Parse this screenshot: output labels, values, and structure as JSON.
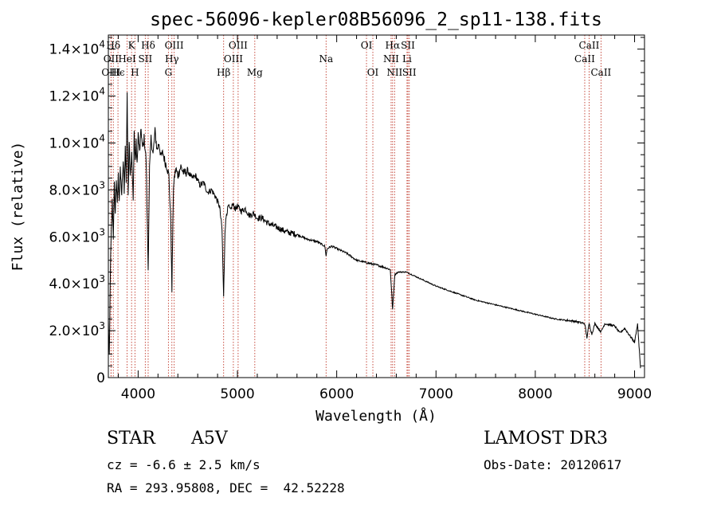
{
  "chart_data": {
    "type": "line",
    "title": "spec-56096-kepler08B56096_2_sp11-138.fits",
    "xlabel": "Wavelength (Å)",
    "ylabel": "Flux (relative)",
    "xlim": [
      3700,
      9100
    ],
    "ylim": [
      0,
      14600
    ],
    "x_ticks": [
      4000,
      5000,
      6000,
      7000,
      8000,
      9000
    ],
    "x_tick_labels": [
      "4000",
      "5000",
      "6000",
      "7000",
      "8000",
      "9000"
    ],
    "y_ticks": [
      0,
      2000,
      4000,
      6000,
      8000,
      10000,
      12000,
      14000
    ],
    "y_tick_labels": [
      {
        "mant": "0",
        "exp": ""
      },
      {
        "mant": "2.0×10",
        "exp": "3"
      },
      {
        "mant": "4.0×10",
        "exp": "3"
      },
      {
        "mant": "6.0×10",
        "exp": "3"
      },
      {
        "mant": "8.0×10",
        "exp": "3"
      },
      {
        "mant": "1.0×10",
        "exp": "4"
      },
      {
        "mant": "1.2×10",
        "exp": "4"
      },
      {
        "mant": "1.4×10",
        "exp": "4"
      }
    ],
    "series": [
      {
        "name": "flux",
        "x": [
          3700,
          3710,
          3720,
          3730,
          3740,
          3750,
          3760,
          3770,
          3780,
          3790,
          3800,
          3810,
          3820,
          3835,
          3850,
          3860,
          3870,
          3880,
          3889,
          3900,
          3910,
          3920,
          3935,
          3950,
          3960,
          3970,
          3980,
          3990,
          4000,
          4015,
          4030,
          4045,
          4060,
          4080,
          4101,
          4115,
          4130,
          4150,
          4170,
          4190,
          4210,
          4230,
          4250,
          4270,
          4290,
          4310,
          4330,
          4340,
          4350,
          4360,
          4380,
          4400,
          4430,
          4460,
          4500,
          4540,
          4580,
          4620,
          4660,
          4700,
          4740,
          4780,
          4820,
          4845,
          4861,
          4875,
          4890,
          4910,
          4930,
          4950,
          4980,
          5000,
          5040,
          5080,
          5120,
          5160,
          5200,
          5250,
          5300,
          5400,
          5500,
          5600,
          5700,
          5800,
          5880,
          5893,
          5905,
          5950,
          6000,
          6100,
          6200,
          6300,
          6400,
          6480,
          6540,
          6563,
          6585,
          6620,
          6700,
          6800,
          6900,
          7000,
          7200,
          7400,
          7600,
          7800,
          8000,
          8200,
          8400,
          8498,
          8520,
          8542,
          8570,
          8600,
          8662,
          8700,
          8800,
          8850,
          8900,
          8950,
          9000,
          9030,
          9060
        ],
        "y": [
          2500,
          800,
          4500,
          6200,
          7500,
          6000,
          8200,
          7000,
          8500,
          7300,
          8600,
          7600,
          8800,
          7800,
          9200,
          8000,
          9800,
          8400,
          12200,
          7800,
          10200,
          8700,
          9500,
          7500,
          10500,
          9200,
          10000,
          9000,
          10400,
          9600,
          10600,
          9700,
          10200,
          9300,
          4600,
          8900,
          10200,
          9500,
          10500,
          9700,
          10000,
          9400,
          9600,
          9200,
          9000,
          8600,
          6500,
          3700,
          6800,
          8400,
          8900,
          8600,
          9000,
          8700,
          8800,
          8500,
          8600,
          8200,
          8300,
          7900,
          8000,
          7700,
          7300,
          6300,
          3400,
          6300,
          7000,
          7300,
          7100,
          7400,
          7200,
          7300,
          7100,
          7200,
          6900,
          7000,
          6800,
          6800,
          6600,
          6400,
          6200,
          6100,
          5900,
          5800,
          5600,
          5200,
          5500,
          5600,
          5500,
          5300,
          5000,
          4900,
          4800,
          4700,
          4600,
          2900,
          4400,
          4500,
          4500,
          4300,
          4100,
          3900,
          3600,
          3300,
          3100,
          2900,
          2700,
          2500,
          2400,
          2300,
          1700,
          2300,
          1850,
          2300,
          1950,
          2300,
          2200,
          1900,
          2100,
          1800,
          1500,
          2300,
          400
        ]
      }
    ],
    "emission_lines": [
      {
        "label": "Hδ",
        "x": 3750,
        "row": 1
      },
      {
        "label": "OII",
        "x": 3727,
        "row": 2
      },
      {
        "label": "OIII",
        "x": 3727,
        "row": 3
      },
      {
        "label": "Hϵ",
        "x": 3797,
        "row": 3
      },
      {
        "label": "K",
        "x": 3934,
        "row": 1
      },
      {
        "label": "HeI",
        "x": 3889,
        "row": 2
      },
      {
        "label": "H",
        "x": 3968,
        "row": 3
      },
      {
        "label": "Hδ",
        "x": 4101,
        "row": 1
      },
      {
        "label": "SII",
        "x": 4072,
        "row": 2
      },
      {
        "label": "OIII",
        "x": 4363,
        "row": 1
      },
      {
        "label": "Hγ",
        "x": 4340,
        "row": 2
      },
      {
        "label": "G",
        "x": 4305,
        "row": 3
      },
      {
        "label": "Hβ",
        "x": 4861,
        "row": 3
      },
      {
        "label": "OIII",
        "x": 5007,
        "row": 1
      },
      {
        "label": "OIII",
        "x": 4959,
        "row": 2
      },
      {
        "label": "Mg",
        "x": 5175,
        "row": 3
      },
      {
        "label": "Na",
        "x": 5893,
        "row": 2
      },
      {
        "label": "OI",
        "x": 6300,
        "row": 1
      },
      {
        "label": "OI",
        "x": 6364,
        "row": 3
      },
      {
        "label": "Hα",
        "x": 6563,
        "row": 1
      },
      {
        "label": "NII",
        "x": 6548,
        "row": 2
      },
      {
        "label": "NII",
        "x": 6583,
        "row": 3
      },
      {
        "label": "SII",
        "x": 6717,
        "row": 1
      },
      {
        "label": "Li",
        "x": 6708,
        "row": 2
      },
      {
        "label": "SII",
        "x": 6731,
        "row": 3
      },
      {
        "label": "CaII",
        "x": 8542,
        "row": 1
      },
      {
        "label": "CaII",
        "x": 8498,
        "row": 2
      },
      {
        "label": "CaII",
        "x": 8662,
        "row": 3
      }
    ]
  },
  "info": {
    "object_class": "STAR",
    "subclass": "A5V",
    "survey": "LAMOST DR3",
    "redshift": "cz = -6.6 ± 2.5 km/s",
    "obs_date": "Obs-Date: 20120617",
    "coords": "RA = 293.95808, DEC =  42.52228"
  },
  "colors": {
    "axis": "#000000",
    "line_marker": "#c0392b",
    "spectrum": "#000000"
  }
}
